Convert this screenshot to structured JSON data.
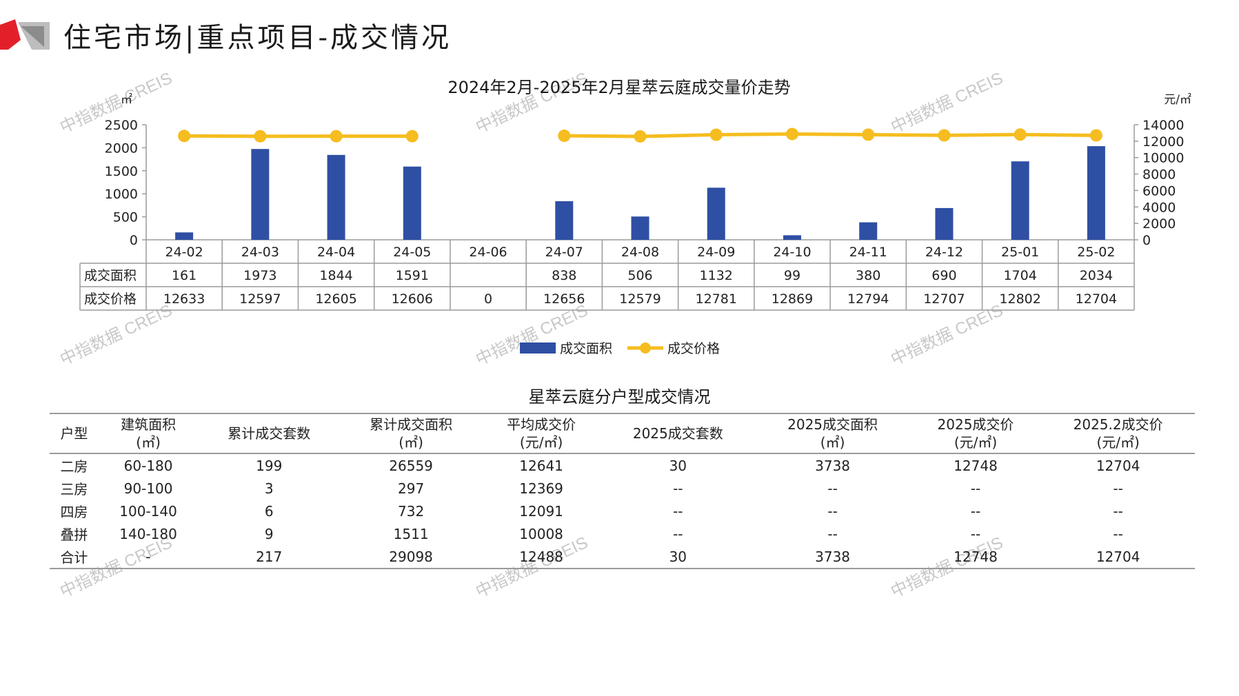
{
  "header": {
    "title": "住宅市场|重点项目-成交情况"
  },
  "watermark": {
    "text": "中指数据 CREIS"
  },
  "colors": {
    "bar": "#2E4FA3",
    "line": "#F5BD1F",
    "accent_red": "#E3202A",
    "axis": "#9a9a9a"
  },
  "chart_data": {
    "type": "bar+line",
    "title": "2024年2月-2025年2月星萃云庭成交量价走势",
    "y_left_unit": "㎡",
    "y_right_unit": "元/㎡",
    "y_left_ticks": [
      "0",
      "500",
      "1000",
      "1500",
      "2000",
      "2500"
    ],
    "y_right_ticks": [
      "0",
      "2000",
      "4000",
      "6000",
      "8000",
      "10000",
      "12000",
      "14000"
    ],
    "ylim_left": [
      0,
      2500
    ],
    "ylim_right": [
      0,
      14000
    ],
    "categories": [
      "24-02",
      "24-03",
      "24-04",
      "24-05",
      "24-06",
      "24-07",
      "24-08",
      "24-09",
      "24-10",
      "24-11",
      "24-12",
      "25-01",
      "25-02"
    ],
    "series": [
      {
        "name": "成交面积",
        "type": "bar",
        "axis": "left",
        "values": [
          161,
          1973,
          1844,
          1591,
          null,
          838,
          506,
          1132,
          99,
          380,
          690,
          1704,
          2034
        ],
        "labels": [
          "161",
          "1973",
          "1844",
          "1591",
          "",
          "838",
          "506",
          "1132",
          "99",
          "380",
          "690",
          "1704",
          "2034"
        ]
      },
      {
        "name": "成交价格",
        "type": "line",
        "axis": "right",
        "values": [
          12633,
          12597,
          12605,
          12606,
          0,
          12656,
          12579,
          12781,
          12869,
          12794,
          12707,
          12802,
          12704
        ],
        "labels": [
          "12633",
          "12597",
          "12605",
          "12606",
          "0",
          "12656",
          "12579",
          "12781",
          "12869",
          "12794",
          "12707",
          "12802",
          "12704"
        ]
      }
    ],
    "legend_position": "bottom"
  },
  "unit_table": {
    "title": "星萃云庭分户型成交情况",
    "headers": [
      [
        "户型"
      ],
      [
        "建筑面积",
        "(㎡)"
      ],
      [
        "累计成交套数"
      ],
      [
        "累计成交面积",
        "(㎡)"
      ],
      [
        "平均成交价",
        "(元/㎡)"
      ],
      [
        "2025成交套数"
      ],
      [
        "2025成交面积",
        "(㎡)"
      ],
      [
        "2025成交价",
        "(元/㎡)"
      ],
      [
        "2025.2成交价",
        "(元/㎡)"
      ]
    ],
    "rows": [
      [
        "二房",
        "60-180",
        "199",
        "26559",
        "12641",
        "30",
        "3738",
        "12748",
        "12704"
      ],
      [
        "三房",
        "90-100",
        "3",
        "297",
        "12369",
        "--",
        "--",
        "--",
        "--"
      ],
      [
        "四房",
        "100-140",
        "6",
        "732",
        "12091",
        "--",
        "--",
        "--",
        "--"
      ],
      [
        "叠拼",
        "140-180",
        "9",
        "1511",
        "10008",
        "--",
        "--",
        "--",
        "--"
      ],
      [
        "合计",
        "-",
        "217",
        "29098",
        "12488",
        "30",
        "3738",
        "12748",
        "12704"
      ]
    ]
  }
}
